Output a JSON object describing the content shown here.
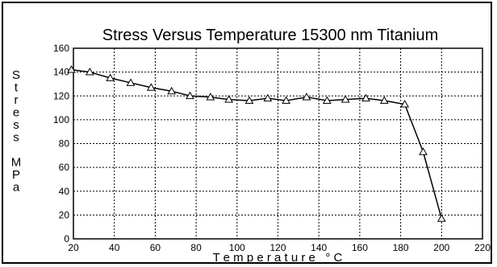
{
  "chart_data": {
    "type": "line",
    "title": "Stress Versus Temperature 15300 nm Titanium",
    "xlabel": "T e m p e r a t u r e   ° C",
    "ylabel_letters": [
      "S",
      "t",
      "r",
      "e",
      "s",
      "s",
      "",
      "M",
      "P",
      "a"
    ],
    "xlim": [
      20,
      220
    ],
    "ylim": [
      0,
      160
    ],
    "x_ticks": [
      20,
      40,
      60,
      80,
      100,
      120,
      140,
      160,
      180,
      200,
      220
    ],
    "y_ticks": [
      0,
      20,
      40,
      60,
      80,
      100,
      120,
      140,
      160
    ],
    "grid": true,
    "series": [
      {
        "x": [
          19,
          28,
          38,
          48,
          58,
          68,
          77,
          87,
          96,
          106,
          115,
          124,
          134,
          144,
          153,
          163,
          172,
          182,
          191,
          200
        ],
        "y": [
          142,
          140,
          135,
          131,
          127,
          124,
          120,
          119,
          117,
          116,
          118,
          116,
          119,
          116,
          117,
          118,
          116,
          113,
          73,
          17
        ],
        "marker": "triangle",
        "color": "#000000"
      }
    ]
  }
}
